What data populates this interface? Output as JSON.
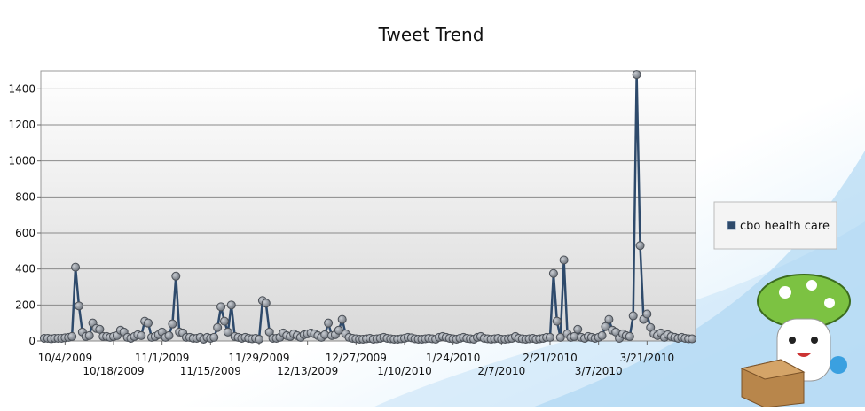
{
  "chart_data": {
    "type": "line",
    "title": "Tweet Trend",
    "x": [
      "9/28/2009",
      "9/29/2009",
      "9/30/2009",
      "10/1/2009",
      "10/2/2009",
      "10/3/2009",
      "10/4/2009",
      "10/5/2009",
      "10/6/2009",
      "10/7/2009",
      "10/8/2009",
      "10/9/2009",
      "10/10/2009",
      "10/11/2009",
      "10/12/2009",
      "10/13/2009",
      "10/14/2009",
      "10/15/2009",
      "10/16/2009",
      "10/17/2009",
      "10/18/2009",
      "10/19/2009",
      "10/20/2009",
      "10/21/2009",
      "10/22/2009",
      "10/23/2009",
      "10/24/2009",
      "10/25/2009",
      "10/26/2009",
      "10/27/2009",
      "10/28/2009",
      "10/29/2009",
      "10/30/2009",
      "10/31/2009",
      "11/1/2009",
      "11/2/2009",
      "11/3/2009",
      "11/4/2009",
      "11/5/2009",
      "11/6/2009",
      "11/7/2009",
      "11/8/2009",
      "11/9/2009",
      "11/10/2009",
      "11/11/2009",
      "11/12/2009",
      "11/13/2009",
      "11/14/2009",
      "11/15/2009",
      "11/16/2009",
      "11/17/2009",
      "11/18/2009",
      "11/19/2009",
      "11/20/2009",
      "11/21/2009",
      "11/22/2009",
      "11/23/2009",
      "11/24/2009",
      "11/25/2009",
      "11/26/2009",
      "11/27/2009",
      "11/28/2009",
      "11/29/2009",
      "11/30/2009",
      "12/1/2009",
      "12/2/2009",
      "12/3/2009",
      "12/4/2009",
      "12/5/2009",
      "12/6/2009",
      "12/7/2009",
      "12/8/2009",
      "12/9/2009",
      "12/10/2009",
      "12/11/2009",
      "12/12/2009",
      "12/13/2009",
      "12/14/2009",
      "12/15/2009",
      "12/16/2009",
      "12/17/2009",
      "12/18/2009",
      "12/19/2009",
      "12/20/2009",
      "12/21/2009",
      "12/22/2009",
      "12/23/2009",
      "12/24/2009",
      "12/25/2009",
      "12/26/2009",
      "12/27/2009",
      "12/28/2009",
      "12/29/2009",
      "12/30/2009",
      "12/31/2009",
      "1/1/2010",
      "1/2/2010",
      "1/3/2010",
      "1/4/2010",
      "1/5/2010",
      "1/6/2010",
      "1/7/2010",
      "1/8/2010",
      "1/9/2010",
      "1/10/2010",
      "1/11/2010",
      "1/12/2010",
      "1/13/2010",
      "1/14/2010",
      "1/15/2010",
      "1/16/2010",
      "1/17/2010",
      "1/18/2010",
      "1/19/2010",
      "1/20/2010",
      "1/21/2010",
      "1/22/2010",
      "1/23/2010",
      "1/24/2010",
      "1/25/2010",
      "1/26/2010",
      "1/27/2010",
      "1/28/2010",
      "1/29/2010",
      "1/30/2010",
      "1/31/2010",
      "2/1/2010",
      "2/2/2010",
      "2/3/2010",
      "2/4/2010",
      "2/5/2010",
      "2/6/2010",
      "2/7/2010",
      "2/8/2010",
      "2/9/2010",
      "2/10/2010",
      "2/11/2010",
      "2/12/2010",
      "2/13/2010",
      "2/14/2010",
      "2/15/2010",
      "2/16/2010",
      "2/17/2010",
      "2/18/2010",
      "2/19/2010",
      "2/20/2010",
      "2/21/2010",
      "2/22/2010",
      "2/23/2010",
      "2/24/2010",
      "2/25/2010",
      "2/26/2010",
      "2/27/2010",
      "2/28/2010",
      "3/1/2010",
      "3/2/2010",
      "3/3/2010",
      "3/4/2010",
      "3/5/2010",
      "3/6/2010",
      "3/7/2010",
      "3/8/2010",
      "3/9/2010",
      "3/10/2010",
      "3/11/2010",
      "3/12/2010",
      "3/13/2010",
      "3/14/2010",
      "3/15/2010",
      "3/16/2010",
      "3/17/2010",
      "3/18/2010",
      "3/19/2010",
      "3/20/2010",
      "3/21/2010",
      "3/22/2010",
      "3/23/2010",
      "3/24/2010",
      "3/25/2010",
      "3/26/2010",
      "3/27/2010",
      "3/28/2010",
      "3/29/2010",
      "3/30/2010",
      "3/31/2010",
      "4/1/2010",
      "4/2/2010",
      "4/3/2010"
    ],
    "series": [
      {
        "name": "cbo health care",
        "color": "#2e4a6b",
        "values": [
          15,
          15,
          12,
          15,
          15,
          15,
          18,
          20,
          25,
          410,
          195,
          50,
          25,
          30,
          100,
          70,
          65,
          25,
          25,
          20,
          25,
          30,
          60,
          50,
          20,
          15,
          25,
          35,
          30,
          110,
          100,
          20,
          25,
          35,
          50,
          20,
          30,
          95,
          360,
          50,
          45,
          20,
          20,
          15,
          15,
          20,
          10,
          20,
          15,
          20,
          75,
          190,
          110,
          50,
          200,
          25,
          20,
          15,
          20,
          15,
          12,
          15,
          10,
          225,
          210,
          50,
          15,
          15,
          20,
          45,
          30,
          25,
          40,
          30,
          20,
          35,
          40,
          45,
          40,
          30,
          20,
          35,
          100,
          30,
          35,
          60,
          120,
          40,
          20,
          15,
          12,
          10,
          10,
          12,
          15,
          10,
          12,
          15,
          20,
          15,
          12,
          10,
          10,
          12,
          15,
          20,
          18,
          12,
          10,
          10,
          12,
          15,
          12,
          10,
          20,
          25,
          20,
          15,
          12,
          10,
          15,
          20,
          15,
          12,
          10,
          20,
          25,
          15,
          12,
          10,
          12,
          15,
          10,
          10,
          12,
          15,
          25,
          15,
          12,
          10,
          12,
          15,
          10,
          12,
          15,
          20,
          20,
          375,
          110,
          20,
          450,
          40,
          20,
          25,
          65,
          20,
          15,
          25,
          20,
          15,
          20,
          30,
          80,
          120,
          60,
          50,
          15,
          40,
          30,
          25,
          140,
          1480,
          530,
          120,
          150,
          75,
          40,
          30,
          45,
          20,
          35,
          25,
          20,
          15,
          20,
          15,
          12,
          12
        ]
      }
    ],
    "xlim": [
      "9/27/2009",
      "4/4/2010"
    ],
    "xticks": [
      "10/4/2009",
      "10/18/2009",
      "11/1/2009",
      "11/15/2009",
      "11/29/2009",
      "12/13/2009",
      "12/27/2009",
      "1/10/2010",
      "1/24/2010",
      "2/7/2010",
      "2/21/2010",
      "3/7/2010",
      "3/21/2010"
    ],
    "ylim": [
      0,
      1500
    ],
    "yticks": [
      0,
      200,
      400,
      600,
      800,
      1000,
      1200,
      1400
    ],
    "grid": true,
    "legend": "right"
  }
}
